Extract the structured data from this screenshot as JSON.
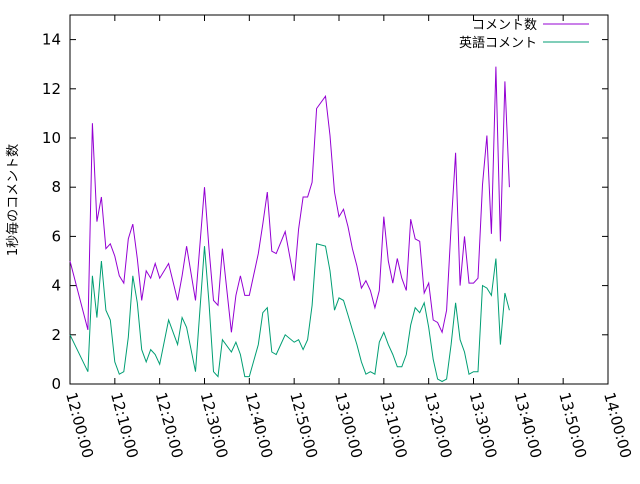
{
  "chart_data": {
    "type": "line",
    "title": "",
    "xlabel": "",
    "ylabel": "1秒毎のコメント数",
    "xlim": [
      "12:00:00",
      "14:00:00"
    ],
    "ylim": [
      0,
      15
    ],
    "grid": false,
    "legend_position": "top-right",
    "x_ticks": [
      "12:00:00",
      "12:10:00",
      "12:20:00",
      "12:30:00",
      "12:40:00",
      "12:50:00",
      "13:00:00",
      "13:10:00",
      "13:20:00",
      "13:30:00",
      "13:40:00",
      "13:50:00",
      "14:00:00"
    ],
    "y_ticks": [
      "0",
      "2",
      "4",
      "6",
      "8",
      "10",
      "12",
      "14"
    ],
    "series": [
      {
        "name": "コメント数",
        "color": "#9400d3",
        "x": [
          "12:00:00",
          "12:04:00",
          "12:05:00",
          "12:06:00",
          "12:07:00",
          "12:08:00",
          "12:09:00",
          "12:10:00",
          "12:11:00",
          "12:12:00",
          "12:13:00",
          "12:14:00",
          "12:15:00",
          "12:16:00",
          "12:17:00",
          "12:18:00",
          "12:19:00",
          "12:20:00",
          "12:22:00",
          "12:24:00",
          "12:25:00",
          "12:26:00",
          "12:28:00",
          "12:30:00",
          "12:31:00",
          "12:32:00",
          "12:33:00",
          "12:34:00",
          "12:36:00",
          "12:37:00",
          "12:38:00",
          "12:39:00",
          "12:40:00",
          "12:42:00",
          "12:43:00",
          "12:44:00",
          "12:45:00",
          "12:46:00",
          "12:48:00",
          "12:50:00",
          "12:51:00",
          "12:52:00",
          "12:53:00",
          "12:54:00",
          "12:55:00",
          "12:57:00",
          "12:58:00",
          "12:59:00",
          "13:00:00",
          "13:01:00",
          "13:02:00",
          "13:03:00",
          "13:04:00",
          "13:05:00",
          "13:06:00",
          "13:07:00",
          "13:08:00",
          "13:09:00",
          "13:10:00",
          "13:11:00",
          "13:12:00",
          "13:13:00",
          "13:14:00",
          "13:15:00",
          "13:16:00",
          "13:17:00",
          "13:18:00",
          "13:19:00",
          "13:20:00",
          "13:21:00",
          "13:22:00",
          "13:23:00",
          "13:24:00",
          "13:25:00",
          "13:26:00",
          "13:27:00",
          "13:28:00",
          "13:29:00",
          "13:30:00",
          "13:31:00",
          "13:32:00",
          "13:33:00",
          "13:34:00",
          "13:35:00",
          "13:36:00",
          "13:37:00",
          "13:38:00",
          "13:39:00",
          "13:40:00",
          "13:41:00",
          "13:42:00",
          "13:43:00",
          "13:44:00",
          "13:45:00",
          "13:46:00",
          "13:47:00",
          "13:48:00",
          "13:49:00",
          "13:50:00"
        ],
        "y": [
          5.0,
          2.2,
          10.6,
          6.6,
          7.6,
          5.5,
          5.7,
          5.2,
          4.4,
          4.1,
          5.9,
          6.5,
          5.1,
          3.4,
          4.6,
          4.3,
          4.9,
          4.3,
          4.9,
          3.4,
          4.4,
          5.6,
          3.4,
          8.0,
          5.5,
          3.4,
          3.2,
          5.5,
          2.1,
          3.6,
          4.4,
          3.6,
          3.6,
          5.3,
          6.5,
          7.8,
          5.4,
          5.3,
          6.2,
          4.2,
          6.3,
          7.6,
          7.6,
          8.2,
          11.2,
          11.7,
          10.1,
          7.8,
          6.8,
          7.1,
          6.4,
          5.5,
          4.8,
          3.9,
          4.2,
          3.8,
          3.1,
          3.8,
          6.8,
          5.0,
          4.1,
          5.1,
          4.3,
          3.8,
          6.7,
          5.9,
          5.8,
          3.7,
          4.1,
          2.6,
          2.5,
          2.1,
          3.0,
          6.4,
          9.4,
          4.0,
          6.0,
          4.1,
          4.1,
          4.3,
          8.1,
          10.1,
          6.1,
          12.9,
          5.8,
          12.3,
          8.0,
          null,
          null,
          null,
          null,
          null,
          null,
          null,
          null,
          null,
          null,
          null,
          null
        ]
      },
      {
        "name": "英語コメント",
        "color": "#009e73",
        "x": [
          "12:00:00",
          "12:04:00",
          "12:05:00",
          "12:06:00",
          "12:07:00",
          "12:08:00",
          "12:09:00",
          "12:10:00",
          "12:11:00",
          "12:12:00",
          "12:13:00",
          "12:14:00",
          "12:15:00",
          "12:16:00",
          "12:17:00",
          "12:18:00",
          "12:19:00",
          "12:20:00",
          "12:22:00",
          "12:24:00",
          "12:25:00",
          "12:26:00",
          "12:28:00",
          "12:30:00",
          "12:31:00",
          "12:32:00",
          "12:33:00",
          "12:34:00",
          "12:36:00",
          "12:37:00",
          "12:38:00",
          "12:39:00",
          "12:40:00",
          "12:42:00",
          "12:43:00",
          "12:44:00",
          "12:45:00",
          "12:46:00",
          "12:48:00",
          "12:50:00",
          "12:51:00",
          "12:52:00",
          "12:53:00",
          "12:54:00",
          "12:55:00",
          "12:57:00",
          "12:58:00",
          "12:59:00",
          "13:00:00",
          "13:01:00",
          "13:02:00",
          "13:03:00",
          "13:04:00",
          "13:05:00",
          "13:06:00",
          "13:07:00",
          "13:08:00",
          "13:09:00",
          "13:10:00",
          "13:11:00",
          "13:12:00",
          "13:13:00",
          "13:14:00",
          "13:15:00",
          "13:16:00",
          "13:17:00",
          "13:18:00",
          "13:19:00",
          "13:20:00",
          "13:21:00",
          "13:22:00",
          "13:23:00",
          "13:24:00",
          "13:25:00",
          "13:26:00",
          "13:27:00",
          "13:28:00",
          "13:29:00",
          "13:30:00",
          "13:31:00",
          "13:32:00",
          "13:33:00",
          "13:34:00",
          "13:35:00",
          "13:36:00",
          "13:37:00",
          "13:38:00",
          "13:39:00",
          "13:40:00",
          "13:41:00",
          "13:42:00",
          "13:43:00",
          "13:44:00",
          "13:45:00",
          "13:46:00",
          "13:47:00",
          "13:48:00",
          "13:49:00",
          "13:50:00"
        ],
        "y": [
          2.0,
          0.5,
          4.4,
          2.7,
          5.0,
          3.0,
          2.6,
          0.9,
          0.4,
          0.5,
          1.9,
          4.4,
          3.3,
          1.4,
          0.9,
          1.4,
          1.2,
          0.8,
          2.6,
          1.6,
          2.7,
          2.3,
          0.5,
          5.6,
          3.3,
          0.5,
          0.3,
          1.8,
          1.3,
          1.7,
          1.2,
          0.3,
          0.3,
          1.6,
          2.9,
          3.1,
          1.3,
          1.2,
          2.0,
          1.7,
          1.8,
          1.4,
          1.8,
          3.2,
          5.7,
          5.6,
          4.6,
          3.0,
          3.5,
          3.4,
          2.8,
          2.2,
          1.6,
          0.9,
          0.4,
          0.5,
          0.4,
          1.7,
          2.1,
          1.6,
          1.2,
          0.7,
          0.7,
          1.2,
          2.4,
          3.1,
          2.9,
          3.3,
          2.3,
          1.0,
          0.2,
          0.1,
          0.2,
          1.6,
          3.3,
          1.8,
          1.3,
          0.4,
          0.5,
          0.5,
          4.0,
          3.9,
          3.6,
          5.1,
          1.6,
          3.7,
          3.0,
          null,
          null,
          null,
          null,
          null,
          null,
          null,
          null,
          null,
          null,
          null,
          null
        ]
      }
    ]
  }
}
